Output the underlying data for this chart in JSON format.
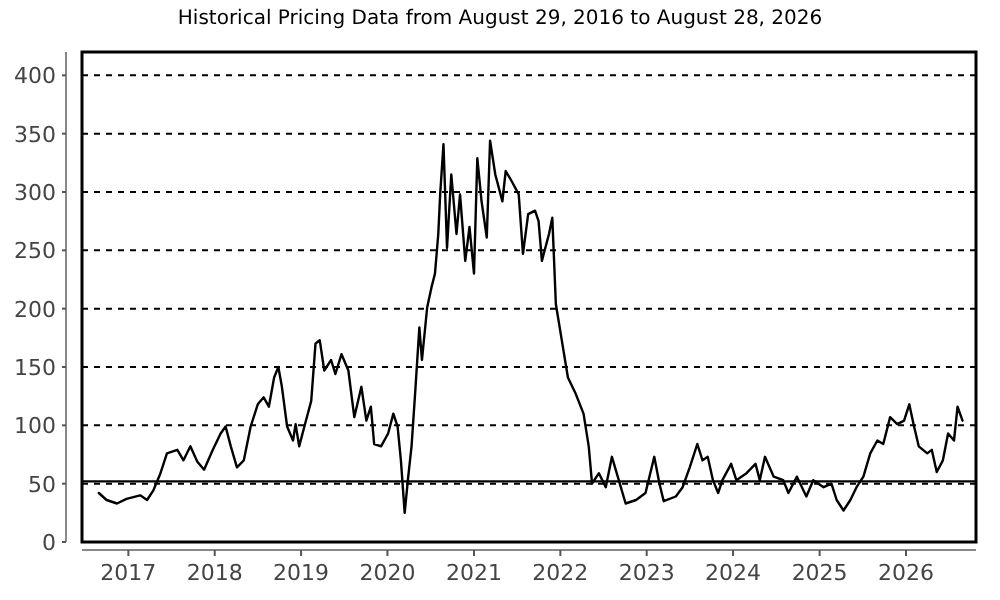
{
  "chart_data": {
    "type": "line",
    "title": "Historical Pricing Data from August 29, 2016 to August 28, 2026",
    "x": [
      "2016-08-29",
      "2016-10-01",
      "2016-11-14",
      "2016-12-24",
      "2017-02-20",
      "2017-03-21",
      "2017-04-16",
      "2017-05-15",
      "2017-06-13",
      "2017-07-27",
      "2017-08-22",
      "2017-09-20",
      "2017-10-19",
      "2017-11-17",
      "2017-12-24",
      "2018-01-26",
      "2018-02-16",
      "2018-03-10",
      "2018-04-05",
      "2018-05-04",
      "2018-06-02",
      "2018-07-02",
      "2018-07-27",
      "2018-08-18",
      "2018-09-09",
      "2018-09-27",
      "2018-10-12",
      "2018-11-03",
      "2018-11-28",
      "2018-12-09",
      "2018-12-24",
      "2019-01-15",
      "2019-02-13",
      "2019-03-03",
      "2019-03-21",
      "2019-04-09",
      "2019-05-08",
      "2019-05-26",
      "2019-06-21",
      "2019-07-20",
      "2019-08-14",
      "2019-09-13",
      "2019-10-04",
      "2019-10-23",
      "2019-11-06",
      "2019-12-05",
      "2020-01-04",
      "2020-01-26",
      "2020-02-13",
      "2020-02-27",
      "2020-03-14",
      "2020-03-29",
      "2020-04-12",
      "2020-04-27",
      "2020-05-15",
      "2020-05-26",
      "2020-06-17",
      "2020-07-05",
      "2020-07-20",
      "2020-08-03",
      "2020-08-11",
      "2020-08-25",
      "2020-09-09",
      "2020-09-27",
      "2020-10-19",
      "2020-11-03",
      "2020-11-25",
      "2020-12-13",
      "2021-01-01",
      "2021-01-15",
      "2021-02-02",
      "2021-02-24",
      "2021-03-10",
      "2021-04-01",
      "2021-05-01",
      "2021-05-15",
      "2021-06-10",
      "2021-07-09",
      "2021-07-27",
      "2021-08-18",
      "2021-09-16",
      "2021-10-01",
      "2021-10-15",
      "2021-11-14",
      "2021-11-28",
      "2021-12-13",
      "2022-01-07",
      "2022-02-02",
      "2022-03-07",
      "2022-04-09",
      "2022-05-01",
      "2022-05-15",
      "2022-06-13",
      "2022-07-12",
      "2022-08-07",
      "2022-09-05",
      "2022-10-04",
      "2022-11-17",
      "2022-12-27",
      "2023-02-02",
      "2023-02-24",
      "2023-03-14",
      "2023-05-04",
      "2023-06-02",
      "2023-07-02",
      "2023-08-03",
      "2023-08-25",
      "2023-09-16",
      "2023-10-08",
      "2023-10-30",
      "2023-11-17",
      "2023-12-24",
      "2024-01-15",
      "2024-02-27",
      "2024-04-05",
      "2024-04-23",
      "2024-05-15",
      "2024-06-21",
      "2024-07-31",
      "2024-08-22",
      "2024-09-27",
      "2024-11-06",
      "2024-12-05",
      "2025-01-18",
      "2025-02-20",
      "2025-03-14",
      "2025-04-12",
      "2025-05-11",
      "2025-06-06",
      "2025-07-05",
      "2025-08-03",
      "2025-09-02",
      "2025-09-27",
      "2025-10-26",
      "2025-11-25",
      "2025-12-24",
      "2026-01-15",
      "2026-02-02",
      "2026-02-24",
      "2026-04-01",
      "2026-04-20",
      "2026-05-11",
      "2026-06-06",
      "2026-06-28",
      "2026-07-23",
      "2026-08-07",
      "2026-08-28"
    ],
    "series": [
      {
        "color": "#000000",
        "values": [
          42,
          36,
          33,
          37,
          40,
          36,
          44,
          58,
          76,
          79,
          70,
          82,
          69,
          62,
          79,
          93,
          99,
          82,
          64,
          70,
          99,
          118,
          124,
          116,
          141,
          150,
          133,
          99,
          87,
          101,
          82,
          99,
          121,
          170,
          173,
          147,
          156,
          144,
          161,
          147,
          107,
          133,
          104,
          116,
          84,
          82,
          93,
          110,
          99,
          70,
          25,
          56,
          82,
          127,
          184,
          156,
          201,
          218,
          230,
          264,
          298,
          341,
          252,
          315,
          264,
          298,
          241,
          270,
          230,
          329,
          292,
          261,
          344,
          315,
          292,
          318,
          309,
          298,
          247,
          281,
          284,
          275,
          241,
          264,
          278,
          204,
          173,
          141,
          127,
          110,
          82,
          50,
          59,
          47,
          73,
          53,
          33,
          36,
          42,
          73,
          50,
          35,
          39,
          47,
          64,
          84,
          70,
          73,
          53,
          42,
          53,
          67,
          53,
          59,
          67,
          53,
          73,
          56,
          53,
          42,
          56,
          39,
          53,
          47,
          50,
          36,
          27,
          36,
          47,
          56,
          76,
          87,
          84,
          107,
          101,
          104,
          118,
          101,
          82,
          76,
          79,
          60,
          70,
          93,
          87,
          116,
          104
        ]
      }
    ],
    "xlim": [
      "2016-06-19",
      "2026-10-24"
    ],
    "xticks": [
      {
        "value": "2017-01-01",
        "label": "2017"
      },
      {
        "value": "2018-01-01",
        "label": "2018"
      },
      {
        "value": "2019-01-01",
        "label": "2019"
      },
      {
        "value": "2020-01-01",
        "label": "2020"
      },
      {
        "value": "2021-01-01",
        "label": "2021"
      },
      {
        "value": "2022-01-01",
        "label": "2022"
      },
      {
        "value": "2023-01-01",
        "label": "2023"
      },
      {
        "value": "2024-01-01",
        "label": "2024"
      },
      {
        "value": "2025-01-01",
        "label": "2025"
      },
      {
        "value": "2026-01-01",
        "label": "2026"
      }
    ],
    "ylim": [
      0,
      420
    ],
    "yticks": [
      0,
      50,
      100,
      150,
      200,
      250,
      300,
      350,
      400
    ],
    "grid": "y",
    "line_style": "solid",
    "ref_lines": [
      {
        "axis": "y",
        "value": 52,
        "color": "#000000",
        "line_style": "solid"
      }
    ]
  }
}
